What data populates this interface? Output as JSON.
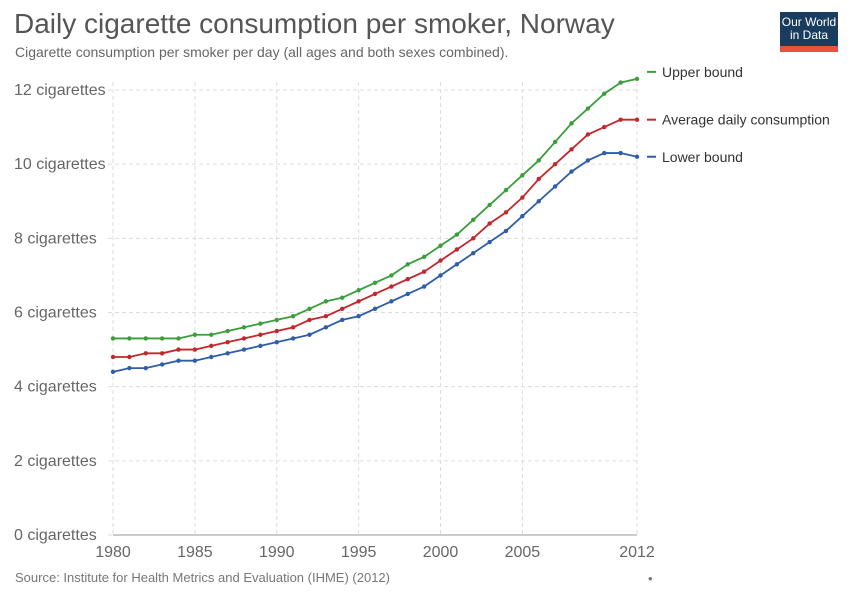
{
  "header": {
    "title": "Daily cigarette consumption per smoker, Norway",
    "subtitle": "Cigarette consumption per smoker per day (all ages and both sexes combined)."
  },
  "logo": {
    "line1": "Our World",
    "line2": "in Data",
    "bg_color": "#1a3c5e",
    "accent_color": "#e8513c"
  },
  "footer": {
    "source": "Source: Institute for Health Metrics and Evaluation (IHME) (2012)",
    "dot": "•"
  },
  "chart_data": {
    "type": "line",
    "title": "Daily cigarette consumption per smoker, Norway",
    "subtitle": "Cigarette consumption per smoker per day (all ages and both sexes combined).",
    "xlabel": "",
    "ylabel": "",
    "xlim": [
      1980,
      2012
    ],
    "ylim": [
      0,
      12
    ],
    "y_ticks": [
      0,
      2,
      4,
      6,
      8,
      10,
      12
    ],
    "y_tick_labels": [
      "0 cigarettes",
      "2 cigarettes",
      "4 cigarettes",
      "6 cigarettes",
      "8 cigarettes",
      "10 cigarettes",
      "12 cigarettes"
    ],
    "x_ticks": [
      1980,
      1985,
      1990,
      1995,
      2000,
      2005,
      2012
    ],
    "x_tick_labels": [
      "1980",
      "1985",
      "1990",
      "1995",
      "2000",
      "2005",
      "2012"
    ],
    "grid": true,
    "legend": "right",
    "x": [
      1980,
      1981,
      1982,
      1983,
      1984,
      1985,
      1986,
      1987,
      1988,
      1989,
      1990,
      1991,
      1992,
      1993,
      1994,
      1995,
      1996,
      1997,
      1998,
      1999,
      2000,
      2001,
      2002,
      2003,
      2004,
      2005,
      2006,
      2007,
      2008,
      2009,
      2010,
      2011,
      2012
    ],
    "series": [
      {
        "name": "Upper bound",
        "color": "#3a9e3a",
        "values": [
          5.3,
          5.3,
          5.3,
          5.3,
          5.3,
          5.4,
          5.4,
          5.5,
          5.6,
          5.7,
          5.8,
          5.9,
          6.1,
          6.3,
          6.4,
          6.6,
          6.8,
          7.0,
          7.3,
          7.5,
          7.8,
          8.1,
          8.5,
          8.9,
          9.3,
          9.7,
          10.1,
          10.6,
          11.1,
          11.5,
          11.9,
          12.2,
          12.3
        ]
      },
      {
        "name": "Average daily consumption",
        "color": "#c1272d",
        "values": [
          4.8,
          4.8,
          4.9,
          4.9,
          5.0,
          5.0,
          5.1,
          5.2,
          5.3,
          5.4,
          5.5,
          5.6,
          5.8,
          5.9,
          6.1,
          6.3,
          6.5,
          6.7,
          6.9,
          7.1,
          7.4,
          7.7,
          8.0,
          8.4,
          8.7,
          9.1,
          9.6,
          10.0,
          10.4,
          10.8,
          11.0,
          11.2,
          11.2
        ]
      },
      {
        "name": "Lower bound",
        "color": "#2f5da8",
        "values": [
          4.4,
          4.5,
          4.5,
          4.6,
          4.7,
          4.7,
          4.8,
          4.9,
          5.0,
          5.1,
          5.2,
          5.3,
          5.4,
          5.6,
          5.8,
          5.9,
          6.1,
          6.3,
          6.5,
          6.7,
          7.0,
          7.3,
          7.6,
          7.9,
          8.2,
          8.6,
          9.0,
          9.4,
          9.8,
          10.1,
          10.3,
          10.3,
          10.2
        ]
      }
    ]
  }
}
